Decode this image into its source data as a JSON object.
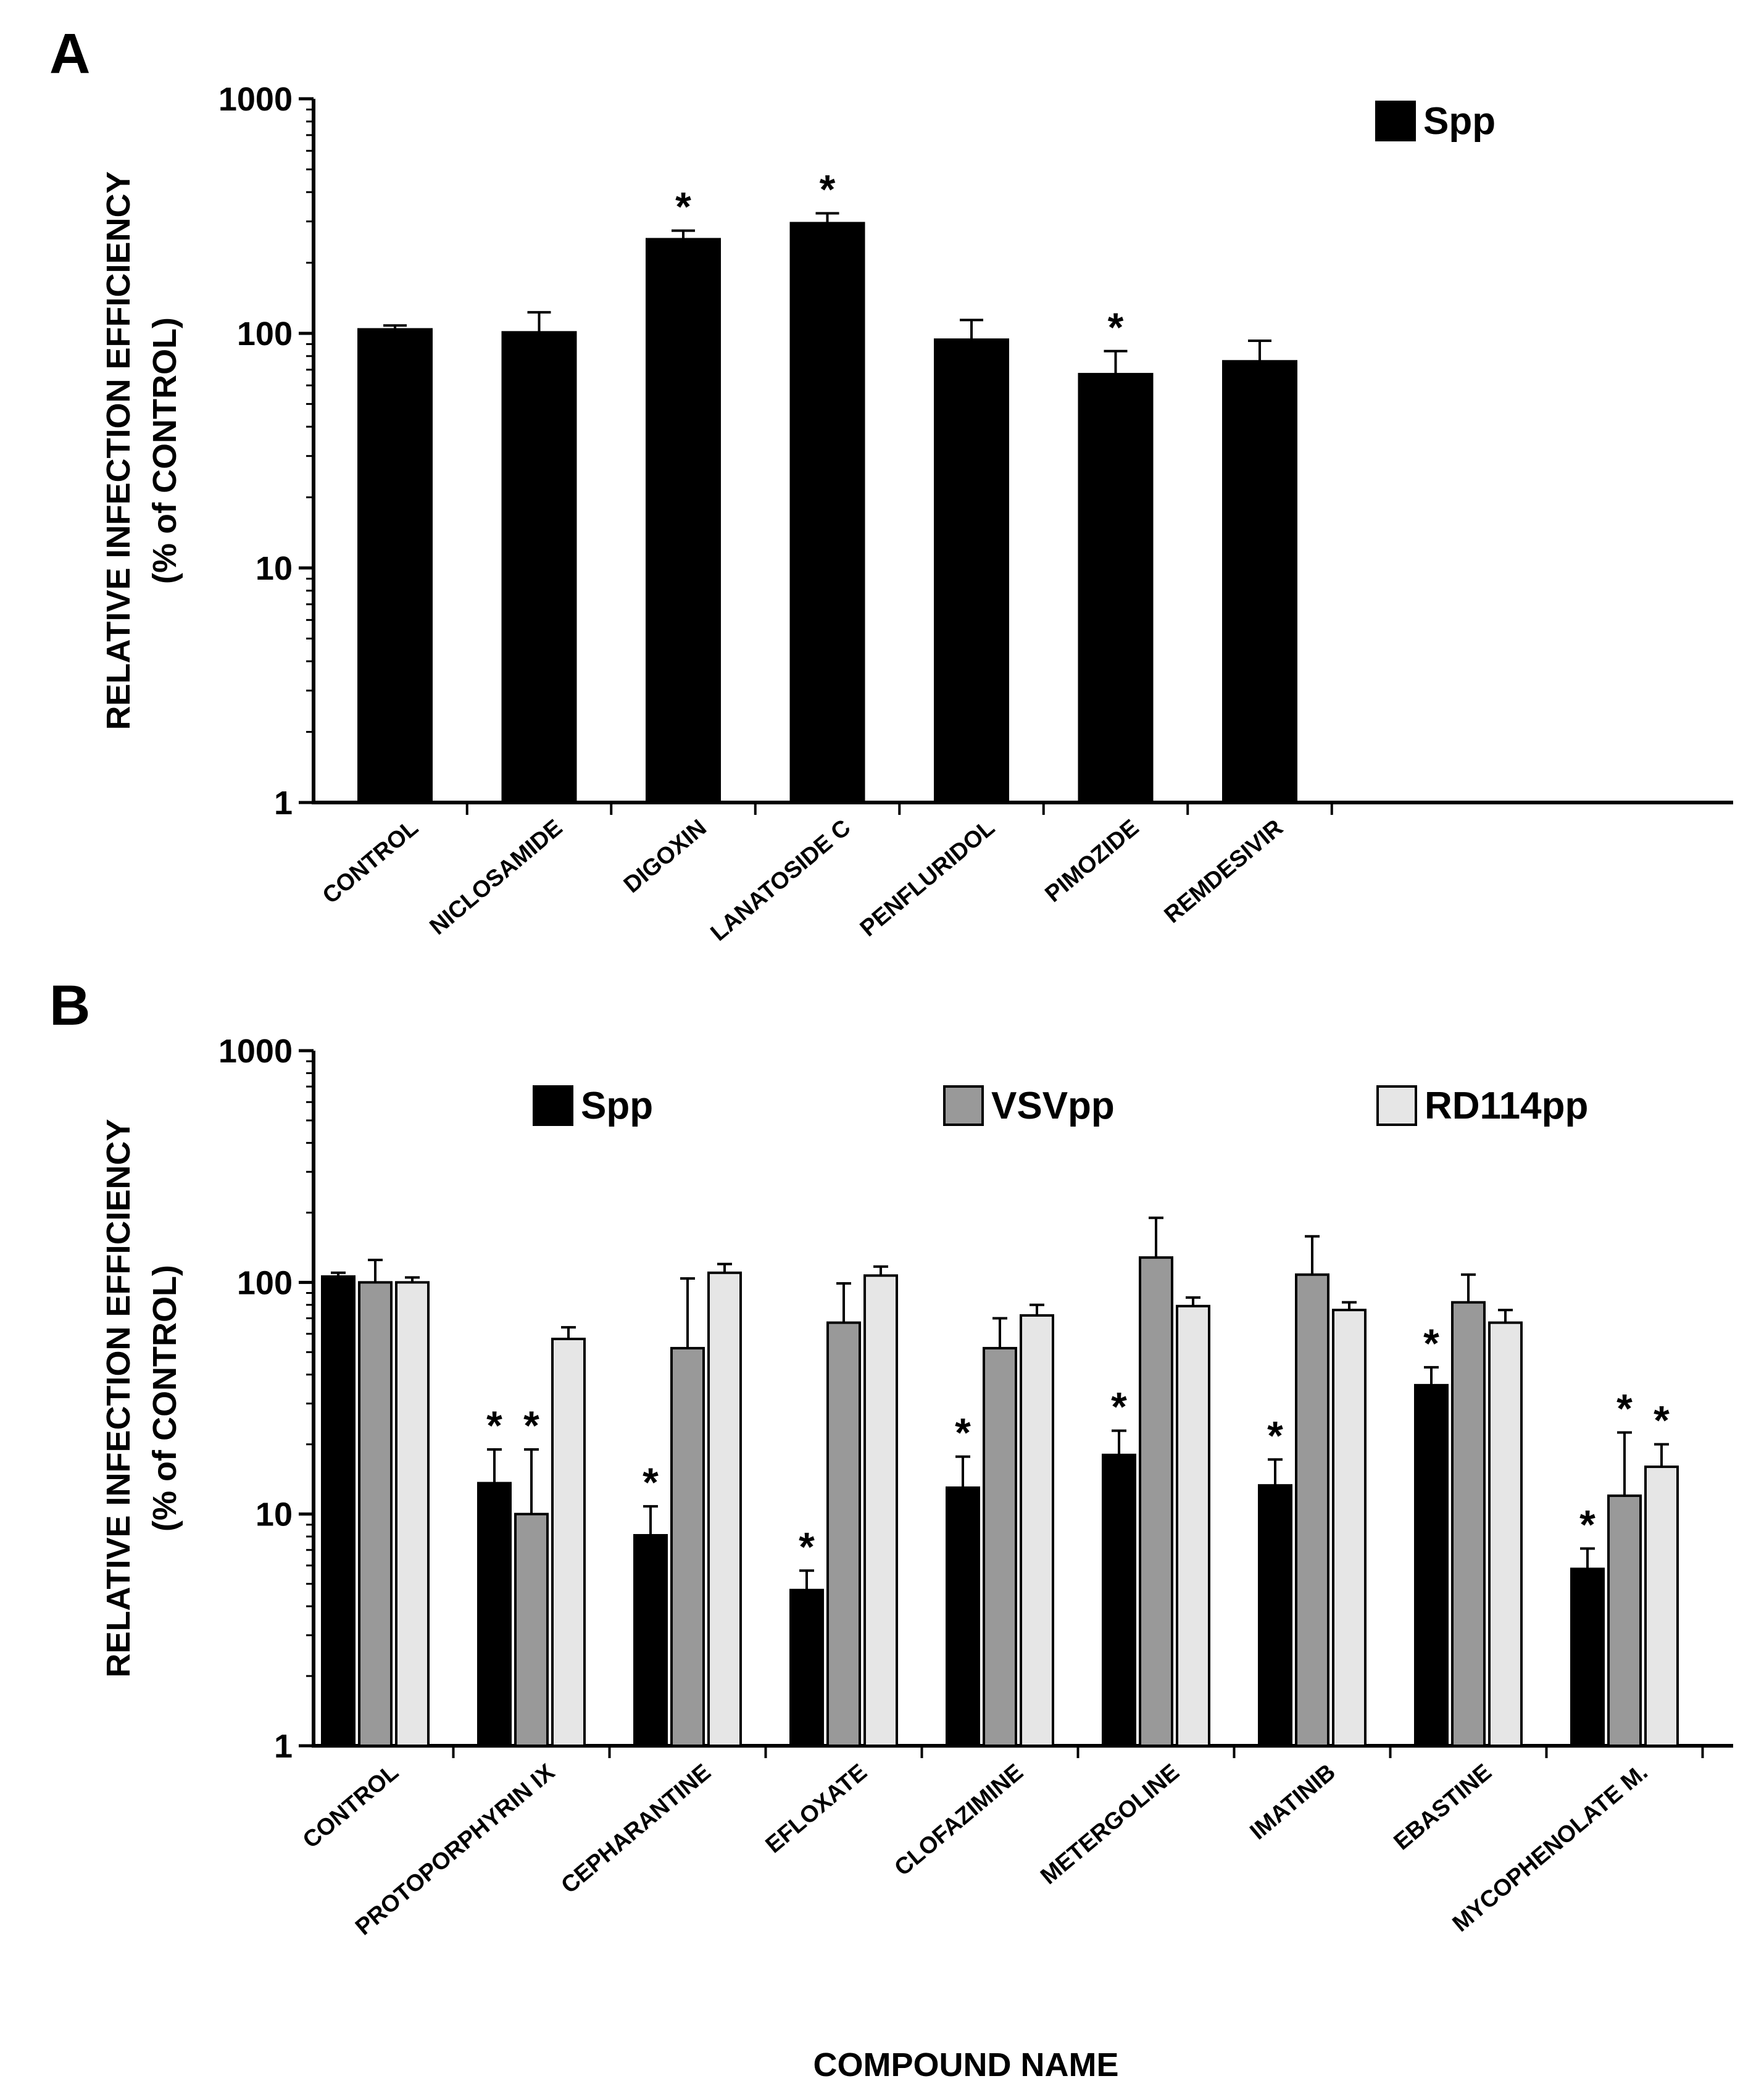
{
  "figure": {
    "xlabel": "COMPOUND NAME"
  },
  "chart_data": [
    {
      "panel": "A",
      "type": "bar",
      "scale": "log",
      "ylim": [
        1,
        1000
      ],
      "yticks": [
        1,
        10,
        100,
        1000
      ],
      "yticklabels": [
        "1",
        "10",
        "100",
        "1000"
      ],
      "ylabel": "RELATIVE INFECTION EFFICIENCY",
      "ylabel2": "(% of CONTROL)",
      "categories": [
        "CONTROL",
        "NICLOSAMIDE",
        "DIGOXIN",
        "LANATOSIDE C",
        "PENFLURIDOL",
        "PIMOZIDE",
        "REMDESIVIR"
      ],
      "series": [
        {
          "name": "Spp",
          "color": "#000000",
          "values": [
            104,
            101,
            252,
            295,
            94,
            67,
            76
          ],
          "errors": [
            4,
            22,
            22,
            30,
            20,
            17,
            17
          ],
          "significant": [
            false,
            false,
            true,
            true,
            false,
            true,
            false
          ]
        }
      ],
      "significance_mark": "*"
    },
    {
      "panel": "B",
      "type": "bar",
      "scale": "log",
      "ylim": [
        1,
        1000
      ],
      "yticks": [
        1,
        10,
        100,
        1000
      ],
      "yticklabels": [
        "1",
        "10",
        "100",
        "1000"
      ],
      "ylabel": "RELATIVE INFECTION EFFICIENCY",
      "ylabel2": "(% of CONTROL)",
      "categories": [
        "CONTROL",
        "PROTOPORPHYRIN IX",
        "CEPHARANTINE",
        "EFLOXATE",
        "CLOFAZIMINE",
        "METERGOLINE",
        "IMATINIB",
        "EBASTINE",
        "MYCOPHENOLATE M."
      ],
      "series": [
        {
          "name": "Spp",
          "color": "#000000",
          "values": [
            106,
            13.6,
            8.1,
            4.7,
            13,
            18,
            13.3,
            36,
            5.8
          ],
          "errors": [
            4,
            5.4,
            2.7,
            1,
            4.7,
            4.9,
            3.9,
            7,
            1.3
          ],
          "significant": [
            false,
            true,
            true,
            true,
            true,
            true,
            true,
            true,
            true
          ]
        },
        {
          "name": "VSVpp",
          "color": "#999999",
          "values": [
            100,
            10,
            52,
            67,
            52,
            128,
            108,
            82,
            12
          ],
          "errors": [
            25,
            9,
            52,
            32,
            18,
            62,
            50,
            26,
            10.5
          ],
          "significant": [
            false,
            true,
            false,
            false,
            false,
            false,
            false,
            false,
            true
          ]
        },
        {
          "name": "RD114pp",
          "color": "#e6e6e6",
          "values": [
            100,
            57,
            110,
            107,
            72,
            79,
            76,
            67,
            16
          ],
          "errors": [
            5,
            7,
            10,
            10,
            8,
            7,
            6,
            9,
            4
          ],
          "significant": [
            false,
            false,
            false,
            false,
            false,
            false,
            false,
            false,
            true
          ]
        }
      ],
      "significance_mark": "*"
    }
  ]
}
